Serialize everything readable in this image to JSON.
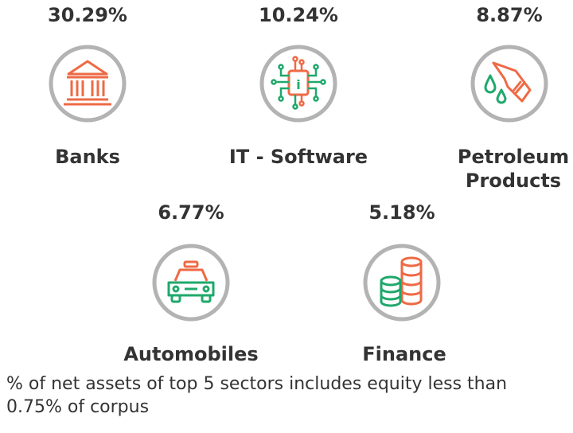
{
  "colors": {
    "ring": "#b3b3b3",
    "accent_orange": "#ee6a45",
    "accent_green": "#1fa86b",
    "text": "#333333"
  },
  "sectors": [
    {
      "name": "Banks",
      "percent": "30.29%",
      "icon": "bank-icon"
    },
    {
      "name": "IT - Software",
      "percent": "10.24%",
      "icon": "chip-icon"
    },
    {
      "name_line1": "Petroleum",
      "name_line2": "Products",
      "percent": "8.87%",
      "icon": "fuel-nozzle-icon"
    },
    {
      "name": "Automobiles",
      "percent": "6.77%",
      "icon": "car-icon"
    },
    {
      "name": "Finance",
      "percent": "5.18%",
      "icon": "coins-icon"
    }
  ],
  "footnote": "% of net assets of top 5 sectors includes equity less than 0.75% of corpus"
}
